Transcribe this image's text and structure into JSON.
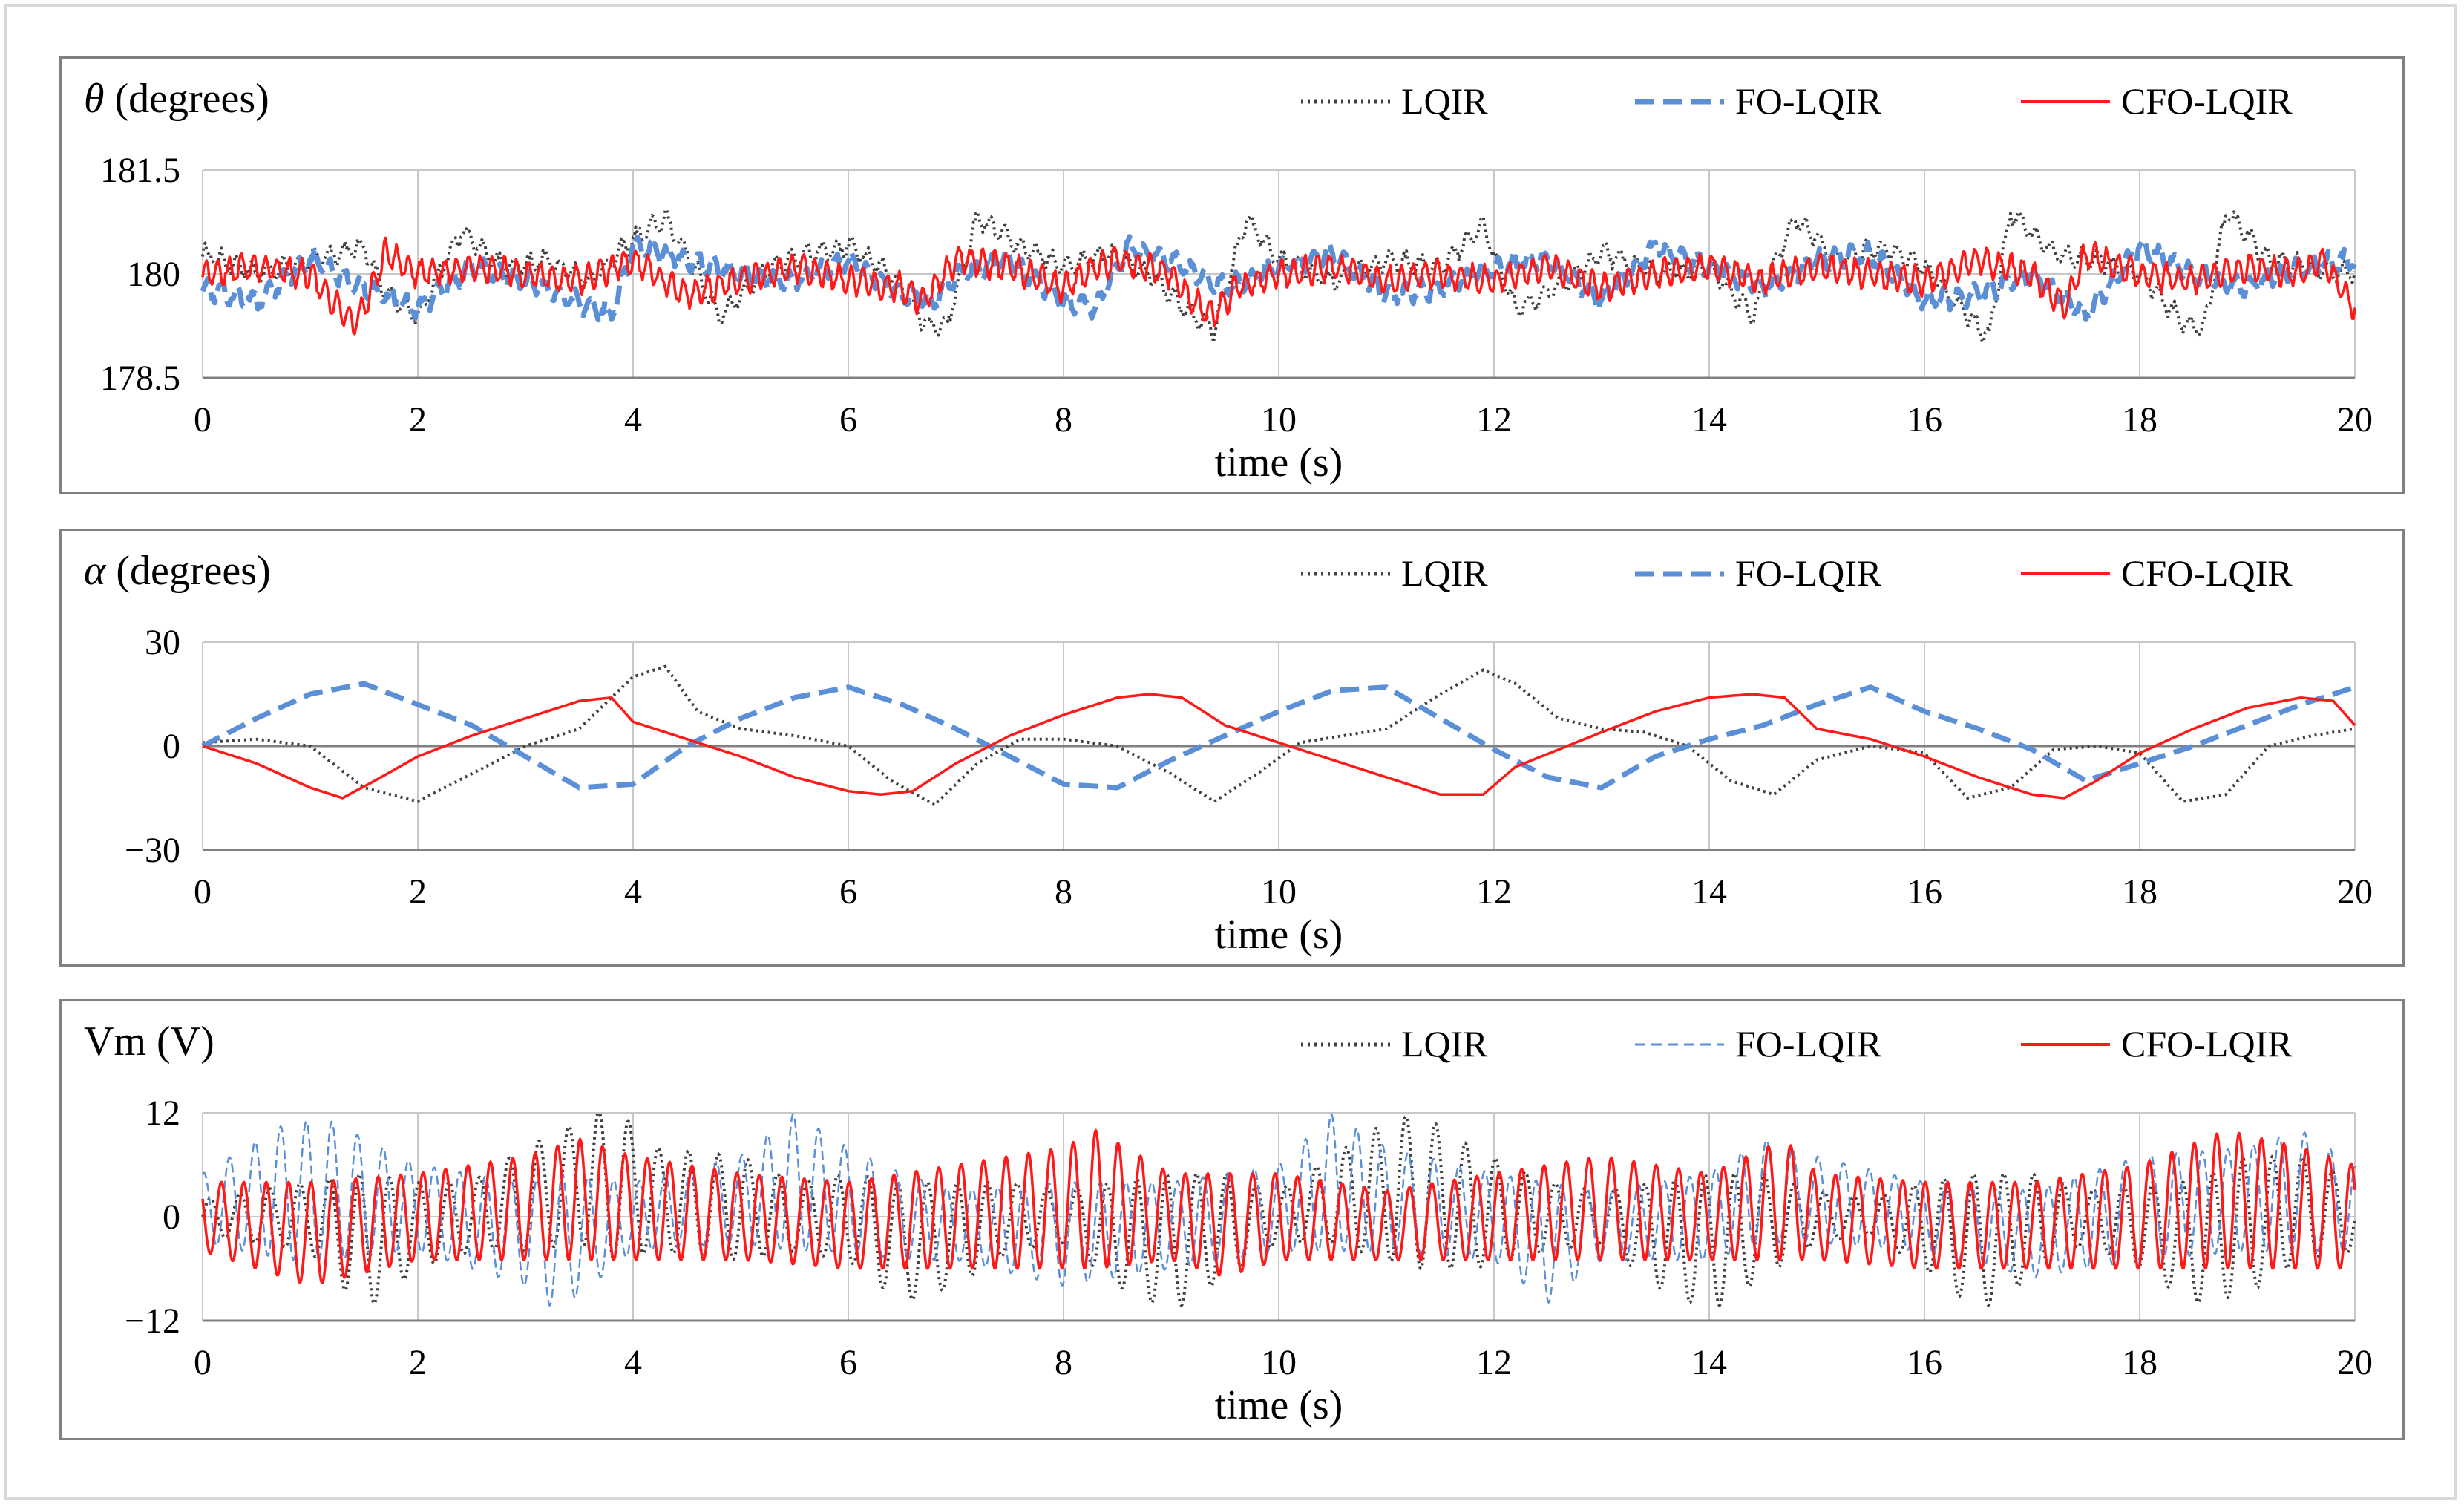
{
  "panels": [
    {
      "id": "theta",
      "title_symbol": "θ",
      "title_rest": " (degrees)",
      "ylim": [
        178.5,
        181.5
      ],
      "yticks": [
        "181.5",
        "180",
        "178.5"
      ],
      "ytick_values": [
        181.5,
        180,
        178.5
      ],
      "zero_line": false,
      "xlabel": "time  (s)",
      "legend": [
        "LQIR",
        "FO-LQIR",
        "CFO-LQIR"
      ]
    },
    {
      "id": "alpha",
      "title_symbol": "α",
      "title_rest": " (degrees)",
      "ylim": [
        -30,
        30
      ],
      "yticks": [
        "30",
        "0",
        "−30"
      ],
      "ytick_values": [
        30,
        0,
        -30
      ],
      "zero_line": true,
      "xlabel": "time  (s)",
      "legend": [
        "LQIR",
        "FO-LQIR",
        "CFO-LQIR"
      ]
    },
    {
      "id": "vm",
      "title_symbol": "",
      "title_rest": "Vm (V)",
      "ylim": [
        -12,
        12
      ],
      "yticks": [
        "12",
        "0",
        "−12"
      ],
      "ytick_values": [
        12,
        0,
        -12
      ],
      "zero_line": false,
      "xlabel": "time  (s)",
      "legend": [
        "LQIR",
        "FO-LQIR",
        "CFO-LQIR"
      ]
    }
  ],
  "colors": {
    "LQIR": "#404040",
    "FO-LQIR": "#5b8fd6",
    "CFO-LQIR": "#ff1a1a",
    "grid": "#c8c8c8",
    "axis": "#808080"
  },
  "chart_data": [
    {
      "type": "line",
      "title": "θ (degrees)",
      "xlabel": "time  (s)",
      "ylabel": "θ (degrees)",
      "xlim": [
        0,
        20
      ],
      "ylim": [
        178.5,
        181.5
      ],
      "xticks": [
        "0",
        "2",
        "4",
        "6",
        "8",
        "10",
        "12",
        "14",
        "16",
        "18",
        "20"
      ],
      "yticks": [
        "181.5",
        "180",
        "178.5"
      ],
      "series": [
        {
          "name": "LQIR",
          "style": "dotted",
          "x": [
            0,
            0.5,
            1,
            1.5,
            1.7,
            2,
            2.4,
            2.8,
            3.2,
            3.6,
            4,
            4.3,
            4.5,
            4.8,
            5.2,
            5.6,
            6,
            6.4,
            6.7,
            6.9,
            7.2,
            7.6,
            8,
            8.4,
            8.8,
            9.2,
            9.4,
            9.7,
            10,
            10.5,
            11,
            11.5,
            11.9,
            12.2,
            12.6,
            13,
            13.5,
            14,
            14.4,
            14.8,
            15.2,
            15.6,
            16,
            16.4,
            16.6,
            16.8,
            17.2,
            17.6,
            18,
            18.4,
            18.6,
            18.8,
            19.2,
            19.6,
            20
          ],
          "y": [
            180.3,
            180,
            180.2,
            180.4,
            179.7,
            179.4,
            180.6,
            180.1,
            180.2,
            179.9,
            180.5,
            180.8,
            180.3,
            179.4,
            180.0,
            180.3,
            180.4,
            180.0,
            179.3,
            179.2,
            180.8,
            180.4,
            180.1,
            180.3,
            180.0,
            179.4,
            179.2,
            180.8,
            180.2,
            179.9,
            180.2,
            180.1,
            180.7,
            179.5,
            179.8,
            180.3,
            180.0,
            180.1,
            179.4,
            180.8,
            180.2,
            180.4,
            180.1,
            179.4,
            179.1,
            180.9,
            180.3,
            180.2,
            180.0,
            179.3,
            179.2,
            180.9,
            180.2,
            180.1,
            180.0
          ]
        },
        {
          "name": "FO-LQIR",
          "style": "dashed",
          "x": [
            0,
            0.5,
            1,
            1.5,
            2,
            2.5,
            3,
            3.5,
            3.8,
            4,
            4.5,
            5,
            5.5,
            6,
            6.5,
            6.8,
            7,
            7.5,
            8,
            8.3,
            8.6,
            9,
            9.5,
            10,
            10.5,
            11,
            11.5,
            12,
            12.5,
            13,
            13.5,
            14,
            14.5,
            15,
            15.5,
            16,
            16.5,
            17,
            17.5,
            18,
            18.5,
            19,
            19.5,
            20
          ],
          "y": [
            179.8,
            179.6,
            180.2,
            179.8,
            179.5,
            180.1,
            179.9,
            179.6,
            179.4,
            180.4,
            180.2,
            180.0,
            179.9,
            180.2,
            179.7,
            179.6,
            180.0,
            180.2,
            179.6,
            179.5,
            180.4,
            180.2,
            179.8,
            180.1,
            180.3,
            179.7,
            179.8,
            180.1,
            180.2,
            179.6,
            180.4,
            180.1,
            179.8,
            180.2,
            180.3,
            179.6,
            179.7,
            180.0,
            179.4,
            180.4,
            180.0,
            179.8,
            180.1,
            180.2
          ]
        },
        {
          "name": "CFO-LQIR",
          "style": "solid",
          "x": [
            0,
            0.5,
            1,
            1.2,
            1.4,
            1.5,
            1.7,
            2,
            2.5,
            3,
            3.5,
            4,
            4.5,
            5,
            5.5,
            6,
            6.5,
            6.7,
            7,
            7.5,
            8,
            8.3,
            8.5,
            9,
            9.2,
            9.4,
            9.6,
            10,
            10.5,
            11,
            11.5,
            12,
            12.5,
            13,
            13.5,
            14,
            14.5,
            15,
            15.5,
            16,
            16.5,
            17,
            17.3,
            17.5,
            18,
            18.5,
            19,
            19.5,
            19.7,
            20
          ],
          "y": [
            180.0,
            180.1,
            180.0,
            179.6,
            179.3,
            179.5,
            180.3,
            180.0,
            180.1,
            180.0,
            179.9,
            180.2,
            179.7,
            179.9,
            180.1,
            179.9,
            179.8,
            179.6,
            180.2,
            180.1,
            179.8,
            180.1,
            180.2,
            180.0,
            179.6,
            179.4,
            179.8,
            180.0,
            180.1,
            179.9,
            180.0,
            179.9,
            180.1,
            179.8,
            180.0,
            180.1,
            179.9,
            180.1,
            180.0,
            179.9,
            180.2,
            180.0,
            179.5,
            180.3,
            180.0,
            179.9,
            180.1,
            180.0,
            180.2,
            179.5
          ]
        }
      ]
    },
    {
      "type": "line",
      "title": "α (degrees)",
      "xlabel": "time  (s)",
      "ylabel": "α (degrees)",
      "xlim": [
        0,
        20
      ],
      "ylim": [
        -30,
        30
      ],
      "xticks": [
        "0",
        "2",
        "4",
        "6",
        "8",
        "10",
        "12",
        "14",
        "16",
        "18",
        "20"
      ],
      "yticks": [
        "30",
        "0",
        "−30"
      ],
      "series": [
        {
          "name": "LQIR",
          "style": "dotted",
          "x": [
            0,
            0.5,
            1,
            1.5,
            2,
            2.5,
            3,
            3.5,
            4,
            4.3,
            4.6,
            5,
            5.5,
            6,
            6.4,
            6.8,
            7.2,
            7.6,
            8,
            8.5,
            9,
            9.4,
            9.8,
            10.2,
            10.6,
            11,
            11.5,
            11.9,
            12.2,
            12.6,
            13,
            13.4,
            13.8,
            14.2,
            14.6,
            15,
            15.5,
            16,
            16.4,
            16.8,
            17.2,
            17.6,
            18,
            18.4,
            18.8,
            19.2,
            19.6,
            20
          ],
          "y": [
            1,
            2,
            0,
            -12,
            -16,
            -8,
            0,
            5,
            20,
            23,
            10,
            5,
            3,
            0,
            -10,
            -17,
            -5,
            2,
            2,
            0,
            -8,
            -16,
            -8,
            1,
            3,
            5,
            15,
            22,
            18,
            8,
            5,
            4,
            0,
            -10,
            -14,
            -4,
            0,
            -2,
            -15,
            -12,
            -1,
            0,
            -2,
            -16,
            -14,
            0,
            3,
            5
          ]
        },
        {
          "name": "FO-LQIR",
          "style": "dashed",
          "x": [
            0,
            0.5,
            1,
            1.5,
            2,
            2.5,
            3,
            3.5,
            4,
            4.5,
            5,
            5.5,
            6,
            6.5,
            7,
            7.5,
            8,
            8.5,
            9,
            9.5,
            10,
            10.5,
            11,
            11.5,
            12,
            12.5,
            13,
            13.5,
            14,
            14.5,
            15,
            15.5,
            16,
            16.5,
            17,
            17.5,
            18,
            18.5,
            19,
            19.5,
            20
          ],
          "y": [
            0,
            8,
            15,
            18,
            12,
            6,
            -3,
            -12,
            -11,
            0,
            8,
            14,
            17,
            12,
            5,
            -3,
            -11,
            -12,
            -4,
            3,
            10,
            16,
            17,
            8,
            -1,
            -9,
            -12,
            -3,
            2,
            6,
            12,
            17,
            10,
            5,
            -1,
            -10,
            -5,
            0,
            6,
            12,
            17
          ]
        },
        {
          "name": "CFO-LQIR",
          "style": "solid",
          "x": [
            0,
            0.5,
            1,
            1.3,
            1.6,
            2,
            2.5,
            3,
            3.5,
            3.8,
            4,
            4.5,
            5,
            5.5,
            6,
            6.3,
            6.6,
            7,
            7.5,
            8,
            8.5,
            8.8,
            9.1,
            9.5,
            10,
            10.5,
            11,
            11.5,
            11.9,
            12.2,
            12.6,
            13,
            13.5,
            14,
            14.4,
            14.7,
            15,
            15.5,
            16,
            16.5,
            17,
            17.3,
            17.6,
            18,
            18.5,
            19,
            19.5,
            19.8,
            20
          ],
          "y": [
            0,
            -5,
            -12,
            -15,
            -10,
            -3,
            3,
            8,
            13,
            14,
            7,
            2,
            -3,
            -9,
            -13,
            -14,
            -13,
            -5,
            3,
            9,
            14,
            15,
            14,
            6,
            1,
            -4,
            -9,
            -14,
            -14,
            -6,
            -1,
            4,
            10,
            14,
            15,
            14,
            5,
            2,
            -3,
            -9,
            -14,
            -15,
            -10,
            -2,
            5,
            11,
            14,
            13,
            6
          ]
        }
      ]
    },
    {
      "type": "line",
      "title": "Vm (V)",
      "xlabel": "time  (s)",
      "ylabel": "Vm (V)",
      "xlim": [
        0,
        20
      ],
      "ylim": [
        -12,
        12
      ],
      "xticks": [
        "0",
        "2",
        "4",
        "6",
        "8",
        "10",
        "12",
        "14",
        "16",
        "18",
        "20"
      ],
      "yticks": [
        "12",
        "0",
        "−12"
      ],
      "series": [
        {
          "name": "LQIR",
          "style": "dotted",
          "freq_hz": 3.6,
          "envelope_x": [
            0,
            1,
            1.5,
            2,
            2.5,
            3,
            3.5,
            3.8,
            4.2,
            5,
            5.5,
            6,
            6.5,
            7,
            7.5,
            8,
            8.5,
            9,
            9.5,
            10,
            10.5,
            11,
            11.3,
            11.8,
            12.5,
            13,
            13.5,
            14,
            14.5,
            15,
            15.5,
            16,
            16.5,
            17,
            17.5,
            18,
            18.5,
            19,
            19.5,
            20
          ],
          "envelope_amp": [
            2,
            4,
            8,
            5,
            4,
            6,
            7,
            9,
            6,
            6,
            4,
            5,
            7,
            6,
            4,
            3,
            6,
            8,
            6,
            3,
            5,
            8,
            9,
            7,
            4,
            3,
            6,
            8,
            6,
            3,
            2,
            5,
            8,
            6,
            3,
            5,
            7,
            8,
            6,
            4
          ],
          "envelope_offset": [
            0,
            0,
            -3,
            -1,
            0,
            2,
            4,
            4,
            2,
            1,
            0,
            0,
            -3,
            -2,
            0,
            0,
            -2,
            -3,
            -1,
            0,
            2,
            3,
            3,
            1,
            0,
            0,
            -2,
            -3,
            -1,
            0,
            0,
            -1,
            -3,
            -1,
            0,
            -1,
            -3,
            -1,
            1,
            0
          ]
        },
        {
          "name": "FO-LQIR",
          "style": "dashed-thin",
          "freq_hz": 4.2,
          "envelope_x": [
            0,
            0.8,
            1.2,
            2,
            3,
            3.3,
            4,
            5,
            5.5,
            6,
            6.5,
            7,
            8,
            9,
            10,
            10.5,
            11,
            12,
            12.5,
            13,
            14,
            14.5,
            15,
            16,
            17,
            18,
            19,
            19.5,
            20
          ],
          "envelope_amp": [
            4,
            8,
            8,
            5,
            6,
            8,
            4,
            5,
            8,
            6,
            5,
            4,
            6,
            5,
            5,
            8,
            6,
            5,
            7,
            4,
            5,
            6,
            5,
            4,
            5,
            6,
            6,
            7,
            5
          ],
          "envelope_offset": [
            1,
            3,
            3,
            1,
            -2,
            -3,
            0,
            2,
            4,
            2,
            0,
            -1,
            -2,
            -1,
            1,
            4,
            2,
            0,
            -3,
            -1,
            0,
            3,
            2,
            0,
            -2,
            1,
            2,
            3,
            1
          ]
        },
        {
          "name": "CFO-LQIR",
          "style": "solid",
          "freq_hz": 4.8,
          "envelope_x": [
            0,
            1,
            2,
            3,
            3.5,
            4,
            5,
            6,
            7,
            8,
            8.3,
            9,
            9.5,
            10,
            11,
            12,
            13,
            14,
            14.7,
            15,
            16,
            17,
            18,
            18.8,
            19.5,
            20
          ],
          "envelope_amp": [
            4,
            6,
            5,
            6,
            7,
            6,
            5,
            5,
            6,
            7,
            8,
            5,
            6,
            5,
            4,
            5,
            6,
            5,
            7,
            5,
            5,
            5,
            6,
            8,
            7,
            6
          ],
          "envelope_offset": [
            0,
            -2,
            0,
            1,
            2,
            1,
            0,
            -1,
            0,
            1,
            2,
            0,
            -1,
            0,
            -1,
            0,
            1,
            0,
            2,
            0,
            -1,
            -1,
            0,
            2,
            1,
            0
          ]
        }
      ]
    }
  ]
}
